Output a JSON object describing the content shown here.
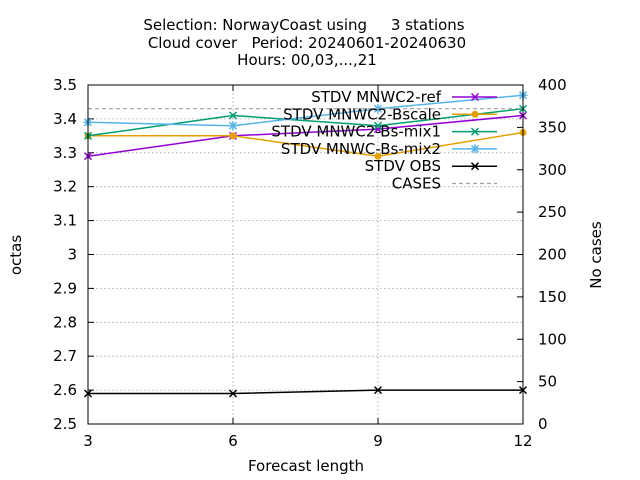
{
  "chart_data": {
    "type": "line",
    "title_lines": [
      "Selection: NorwayCoast using     3 stations",
      "Cloud cover   Period: 20240601-20240630",
      "Hours: 00,03,...,21"
    ],
    "xlabel": "Forecast length",
    "ylabel": "octas",
    "y2label": "No cases",
    "x": [
      3,
      6,
      9,
      12
    ],
    "xlim": [
      3,
      12
    ],
    "ylim": [
      2.5,
      3.5
    ],
    "y2lim": [
      0,
      400
    ],
    "xticks": [
      "3",
      "6",
      "9",
      "12"
    ],
    "yticks": [
      "2.5",
      "2.6",
      "2.7",
      "2.8",
      "2.9",
      "3",
      "3.1",
      "3.2",
      "3.3",
      "3.4",
      "3.5"
    ],
    "y2ticks": [
      "0",
      "50",
      "100",
      "150",
      "200",
      "250",
      "300",
      "350",
      "400"
    ],
    "grid": true,
    "legend_position": "top-right",
    "series": [
      {
        "name": "STDV MNWC2-ref",
        "axis": "y",
        "color": "#9400d3",
        "marker": "cross",
        "values": [
          3.29,
          3.35,
          3.37,
          3.41
        ]
      },
      {
        "name": "STDV MNWC2-Bscale",
        "axis": "y",
        "color": "#e69f00",
        "marker": "dot",
        "values": [
          3.35,
          3.35,
          3.29,
          3.36
        ]
      },
      {
        "name": "STDV MNWC2-Bs-mix1",
        "axis": "y",
        "color": "#009e73",
        "marker": "cross",
        "values": [
          3.35,
          3.41,
          3.38,
          3.43
        ]
      },
      {
        "name": "STDV MNWC-Bs-mix2",
        "axis": "y",
        "color": "#56b4e9",
        "marker": "star",
        "values": [
          3.39,
          3.38,
          3.43,
          3.47
        ]
      },
      {
        "name": "STDV OBS",
        "axis": "y",
        "color": "#000000",
        "marker": "cross",
        "values": [
          2.59,
          2.59,
          2.6,
          2.6
        ]
      },
      {
        "name": "CASES",
        "axis": "y2",
        "color": "#a0a0a0",
        "dashed": true,
        "values": [
          372,
          372,
          372,
          372
        ]
      }
    ]
  }
}
